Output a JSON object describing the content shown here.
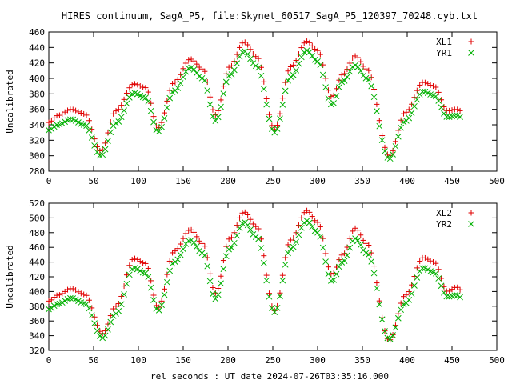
{
  "title": "HIRES continuum, SagA_P5, file:Skynet_60517_SagA_P5_120397_70248.cyb.txt",
  "xlabel": "rel seconds : UT date 2024-07-26T03:35:16.000",
  "colors": {
    "red": "#e00000",
    "green": "#00b000"
  },
  "chart_data": [
    {
      "type": "scatter",
      "ylabel": "Uncalibrated",
      "xlim": [
        0,
        500
      ],
      "ylim": [
        280,
        460
      ],
      "xticks": [
        0,
        50,
        100,
        150,
        200,
        250,
        300,
        350,
        400,
        450,
        500
      ],
      "yticks": [
        280,
        300,
        320,
        340,
        360,
        380,
        400,
        420,
        440,
        460
      ],
      "grid": false,
      "legend_position": "top-right",
      "x": {
        "start": 0,
        "end": 460,
        "step": 3
      },
      "series": [
        {
          "name": "XL1",
          "marker": "plus",
          "color": "#e00000",
          "key_points": [
            [
              0,
              343
            ],
            [
              10,
              352
            ],
            [
              25,
              360
            ],
            [
              40,
              354
            ],
            [
              58,
              306
            ],
            [
              75,
              358
            ],
            [
              95,
              393
            ],
            [
              108,
              388
            ],
            [
              122,
              336
            ],
            [
              140,
              395
            ],
            [
              158,
              425
            ],
            [
              172,
              412
            ],
            [
              186,
              353
            ],
            [
              202,
              415
            ],
            [
              218,
              447
            ],
            [
              232,
              428
            ],
            [
              252,
              334
            ],
            [
              270,
              415
            ],
            [
              288,
              448
            ],
            [
              300,
              436
            ],
            [
              316,
              376
            ],
            [
              328,
              405
            ],
            [
              342,
              429
            ],
            [
              355,
              412
            ],
            [
              380,
              300
            ],
            [
              398,
              356
            ],
            [
              418,
              395
            ],
            [
              430,
              390
            ],
            [
              445,
              358
            ],
            [
              455,
              360
            ],
            [
              460,
              358
            ]
          ]
        },
        {
          "name": "YR1",
          "marker": "cross",
          "color": "#00b000",
          "key_points": [
            [
              0,
              333
            ],
            [
              10,
              340
            ],
            [
              25,
              347
            ],
            [
              40,
              340
            ],
            [
              58,
              300
            ],
            [
              75,
              342
            ],
            [
              95,
              381
            ],
            [
              108,
              375
            ],
            [
              122,
              331
            ],
            [
              140,
              384
            ],
            [
              158,
              414
            ],
            [
              172,
              400
            ],
            [
              186,
              345
            ],
            [
              202,
              404
            ],
            [
              218,
              435
            ],
            [
              232,
              416
            ],
            [
              252,
              330
            ],
            [
              270,
              402
            ],
            [
              288,
              436
            ],
            [
              300,
              422
            ],
            [
              316,
              366
            ],
            [
              328,
              396
            ],
            [
              342,
              417
            ],
            [
              355,
              400
            ],
            [
              380,
              296
            ],
            [
              398,
              345
            ],
            [
              418,
              383
            ],
            [
              430,
              378
            ],
            [
              445,
              350
            ],
            [
              455,
              352
            ],
            [
              460,
              350
            ]
          ]
        }
      ]
    },
    {
      "type": "scatter",
      "ylabel": "Uncalibrated",
      "xlim": [
        0,
        500
      ],
      "ylim": [
        320,
        520
      ],
      "xticks": [
        0,
        50,
        100,
        150,
        200,
        250,
        300,
        350,
        400,
        450,
        500
      ],
      "yticks": [
        320,
        340,
        360,
        380,
        400,
        420,
        440,
        460,
        480,
        500,
        520
      ],
      "grid": false,
      "legend_position": "top-right",
      "x": {
        "start": 0,
        "end": 460,
        "step": 3
      },
      "series": [
        {
          "name": "XL2",
          "marker": "plus",
          "color": "#e00000",
          "key_points": [
            [
              0,
              387
            ],
            [
              10,
              395
            ],
            [
              25,
              404
            ],
            [
              40,
              396
            ],
            [
              60,
              343
            ],
            [
              75,
              380
            ],
            [
              95,
              445
            ],
            [
              108,
              438
            ],
            [
              122,
              378
            ],
            [
              140,
              455
            ],
            [
              158,
              484
            ],
            [
              172,
              465
            ],
            [
              186,
              398
            ],
            [
              202,
              472
            ],
            [
              218,
              508
            ],
            [
              232,
              488
            ],
            [
              252,
              374
            ],
            [
              270,
              470
            ],
            [
              288,
              510
            ],
            [
              300,
              494
            ],
            [
              316,
              423
            ],
            [
              328,
              450
            ],
            [
              342,
              486
            ],
            [
              355,
              465
            ],
            [
              380,
              334
            ],
            [
              398,
              395
            ],
            [
              418,
              446
            ],
            [
              430,
              440
            ],
            [
              445,
              400
            ],
            [
              455,
              406
            ],
            [
              460,
              402
            ]
          ]
        },
        {
          "name": "YR2",
          "marker": "cross",
          "color": "#00b000",
          "key_points": [
            [
              0,
              376
            ],
            [
              10,
              383
            ],
            [
              25,
              391
            ],
            [
              40,
              384
            ],
            [
              60,
              337
            ],
            [
              75,
              370
            ],
            [
              95,
              432
            ],
            [
              108,
              425
            ],
            [
              122,
              374
            ],
            [
              140,
              440
            ],
            [
              158,
              470
            ],
            [
              172,
              452
            ],
            [
              186,
              390
            ],
            [
              202,
              458
            ],
            [
              218,
              494
            ],
            [
              232,
              474
            ],
            [
              252,
              372
            ],
            [
              270,
              458
            ],
            [
              288,
              496
            ],
            [
              300,
              480
            ],
            [
              316,
              414
            ],
            [
              328,
              440
            ],
            [
              342,
              472
            ],
            [
              355,
              452
            ],
            [
              380,
              335
            ],
            [
              398,
              384
            ],
            [
              418,
              432
            ],
            [
              430,
              426
            ],
            [
              445,
              393
            ],
            [
              455,
              395
            ],
            [
              460,
              392
            ]
          ]
        }
      ]
    }
  ]
}
